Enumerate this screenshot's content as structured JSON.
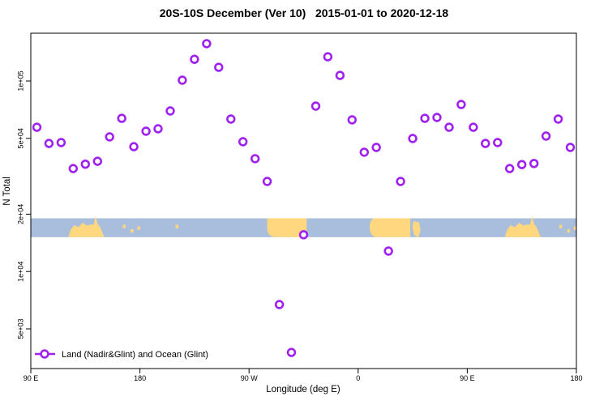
{
  "title": "20S-10S December (Ver 10)   2015-01-01 to 2020-12-18",
  "x_axis": {
    "label": "Longitude (deg E)",
    "tick_labels": [
      "90 E",
      "180",
      "90 W",
      "0",
      "90 E",
      "180"
    ],
    "tick_lons": [
      90,
      180,
      270,
      360,
      450,
      540
    ]
  },
  "y_axis": {
    "label": "N Total",
    "scale": "log",
    "ticks": [
      {
        "label": "1e+05",
        "value": 100000
      },
      {
        "label": "5e+04",
        "value": 50000
      },
      {
        "label": "2e+04",
        "value": 20000
      },
      {
        "label": "1e+04",
        "value": 10000
      },
      {
        "label": "5e+03",
        "value": 5000
      }
    ]
  },
  "legend": {
    "label": "Land (Nadir&Glint) and Ocean (Glint)"
  },
  "colors": {
    "marker": "#a020f0",
    "ocean": "#a9bedd",
    "land": "#ffd77e",
    "axis": "#000000"
  },
  "chart_data": {
    "type": "scatter",
    "title": "20S-10S December (Ver 10)   2015-01-01 to 2020-12-18",
    "xlabel": "Longitude (deg E)",
    "ylabel": "N Total",
    "y_scale": "log",
    "ylim": [
      3100,
      178000
    ],
    "xlim_deg_east_axis": [
      90,
      540
    ],
    "marker": "open-circle",
    "x_deg_east_axis": [
      95,
      105,
      115,
      125,
      135,
      145,
      155,
      165,
      175,
      185,
      195,
      205,
      215,
      225,
      235,
      245,
      255,
      265,
      275,
      285,
      295,
      305,
      315,
      325,
      335,
      345,
      355,
      365,
      375,
      385,
      395,
      405,
      415,
      425,
      435,
      445,
      455,
      465,
      475,
      485,
      495,
      505,
      515,
      525,
      535
    ],
    "values": [
      57200,
      47000,
      47500,
      34700,
      36600,
      37900,
      50900,
      63700,
      45200,
      54500,
      56100,
      69600,
      101000,
      130000,
      157000,
      118000,
      63100,
      48000,
      39100,
      29700,
      6710,
      3760,
      15600,
      73800,
      134000,
      107000,
      62500,
      42300,
      44800,
      12800,
      29700,
      49900,
      63700,
      64400,
      57200,
      75300,
      57200,
      47000,
      47500,
      34700,
      36400,
      36900,
      51400,
      63100,
      44800
    ]
  },
  "map_strip": {
    "lat_band": "20S-10S",
    "land_regions": [
      {
        "name": "australia-new-guinea",
        "shape": "blob",
        "lon_start": 121,
        "lon_end": 150.5,
        "spike_lon": 143.5
      },
      {
        "name": "melanesia-islands",
        "shape": "specks",
        "lons": [
          167,
          173.5,
          179
        ]
      },
      {
        "name": "french-polynesia",
        "shape": "specks",
        "lons": [
          210.5
        ]
      },
      {
        "name": "south-america",
        "shape": "rounded-block",
        "lon_start": 285,
        "lon_end": 317.5
      },
      {
        "name": "southern-africa",
        "shape": "tapered-block",
        "lon_start": 369.5,
        "lon_end": 403
      },
      {
        "name": "madagascar",
        "shape": "island",
        "lon_start": 405.5,
        "lon_end": 411.5
      },
      {
        "name": "australia-new-guinea-repeat",
        "shape": "blob",
        "lon_start": 481,
        "lon_end": 510.5,
        "spike_lon": 503.5
      },
      {
        "name": "melanesia-islands-repeat",
        "shape": "specks",
        "lons": [
          527,
          533.5,
          539
        ]
      }
    ]
  }
}
